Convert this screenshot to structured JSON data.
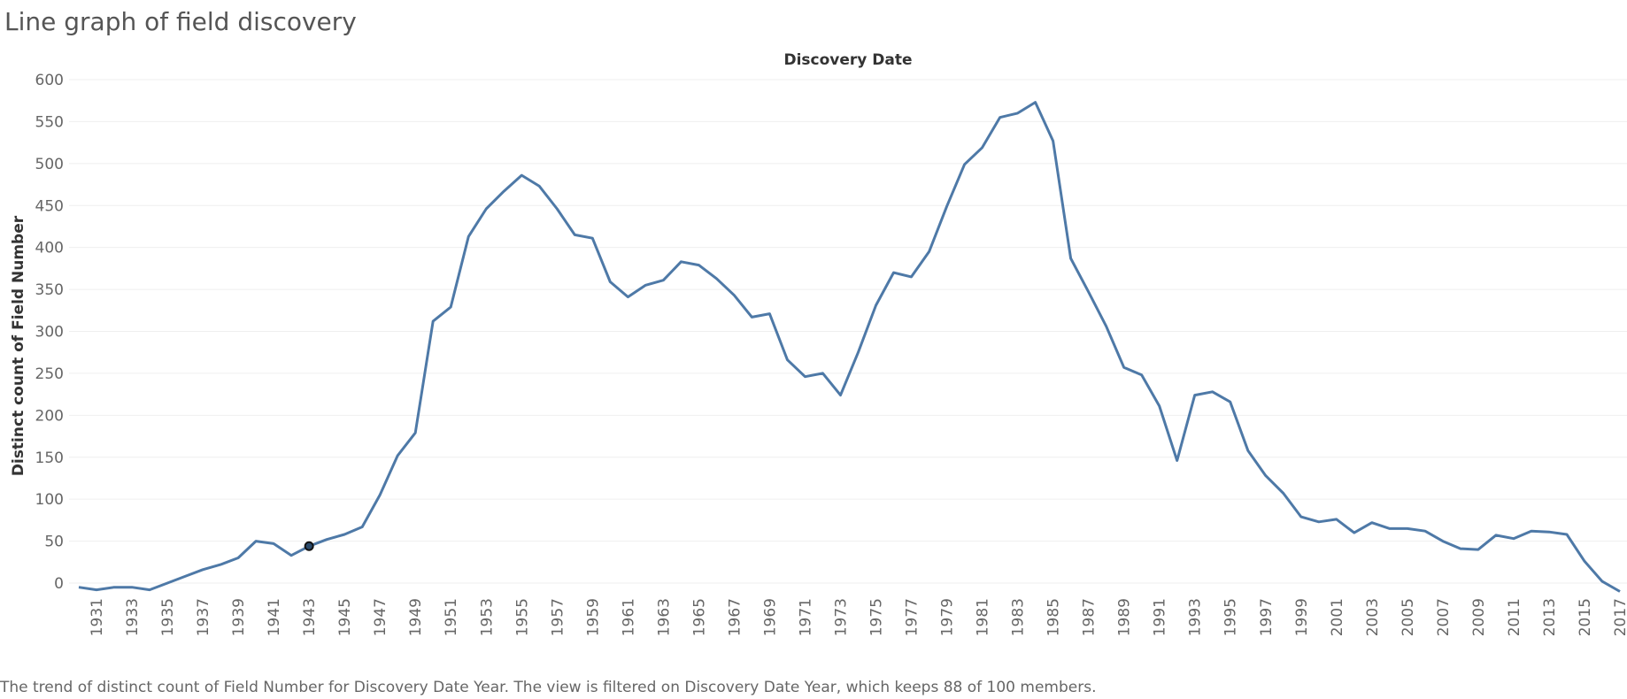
{
  "page": {
    "title": "Line graph of field discovery",
    "caption": "The trend of distinct count of Field Number for Discovery Date Year. The view is filtered on Discovery Date Year, which keeps 88 of 100 members."
  },
  "colors": {
    "line": "#4e79a7",
    "grid": "#efefef",
    "tick_text": "#666666",
    "marker_fill": "#2b4a6b"
  },
  "chart_data": {
    "type": "line",
    "title": "Discovery Date",
    "xlabel": "",
    "ylabel": "Distinct count of Field Number",
    "ylim": [
      0,
      600
    ],
    "yticks": [
      0,
      50,
      100,
      150,
      200,
      250,
      300,
      350,
      400,
      450,
      500,
      550,
      600
    ],
    "xticks": [
      "1931",
      "1933",
      "1935",
      "1937",
      "1939",
      "1941",
      "1943",
      "1945",
      "1947",
      "1949",
      "1951",
      "1953",
      "1955",
      "1957",
      "1959",
      "1961",
      "1963",
      "1965",
      "1967",
      "1969",
      "1971",
      "1973",
      "1975",
      "1977",
      "1979",
      "1981",
      "1983",
      "1985",
      "1987",
      "1989",
      "1991",
      "1993",
      "1995",
      "1997",
      "1999",
      "2001",
      "2003",
      "2005",
      "2007",
      "2009",
      "2011",
      "2013",
      "2015",
      "2017"
    ],
    "grid": true,
    "highlight": {
      "x": 1943,
      "y": 44
    },
    "series": [
      {
        "x": [
          1930,
          1931,
          1932,
          1933,
          1934,
          1935,
          1936,
          1937,
          1938,
          1939,
          1940,
          1941,
          1942,
          1943,
          1944,
          1945,
          1946,
          1947,
          1948,
          1949,
          1950,
          1951,
          1952,
          1953,
          1954,
          1955,
          1956,
          1957,
          1958,
          1959,
          1960,
          1961,
          1962,
          1963,
          1964,
          1965,
          1966,
          1967,
          1968,
          1969,
          1970,
          1971,
          1972,
          1973,
          1974,
          1975,
          1976,
          1977,
          1978,
          1979,
          1980,
          1981,
          1982,
          1983,
          1984,
          1985,
          1986,
          1987,
          1988,
          1989,
          1990,
          1991,
          1992,
          1993,
          1994,
          1995,
          1996,
          1997,
          1998,
          1999,
          2000,
          2001,
          2002,
          2003,
          2004,
          2005,
          2006,
          2007,
          2008,
          2009,
          2010,
          2011,
          2012,
          2013,
          2014,
          2015,
          2016,
          2017
        ],
        "values": [
          -5,
          -8,
          -5,
          -5,
          -8,
          0,
          8,
          16,
          22,
          30,
          50,
          47,
          33,
          44,
          52,
          58,
          67,
          105,
          152,
          179,
          312,
          329,
          413,
          446,
          467,
          486,
          473,
          446,
          415,
          411,
          359,
          341,
          355,
          361,
          383,
          379,
          363,
          343,
          317,
          321,
          266,
          246,
          250,
          224,
          275,
          331,
          370,
          365,
          395,
          449,
          499,
          519,
          555,
          560,
          573,
          527,
          387,
          347,
          306,
          257,
          248,
          211,
          146,
          224,
          228,
          216,
          158,
          128,
          107,
          79,
          73,
          76,
          60,
          72,
          65,
          65,
          62,
          50,
          41,
          40,
          57,
          53,
          62,
          61,
          58,
          26,
          2,
          -10
        ]
      }
    ]
  }
}
